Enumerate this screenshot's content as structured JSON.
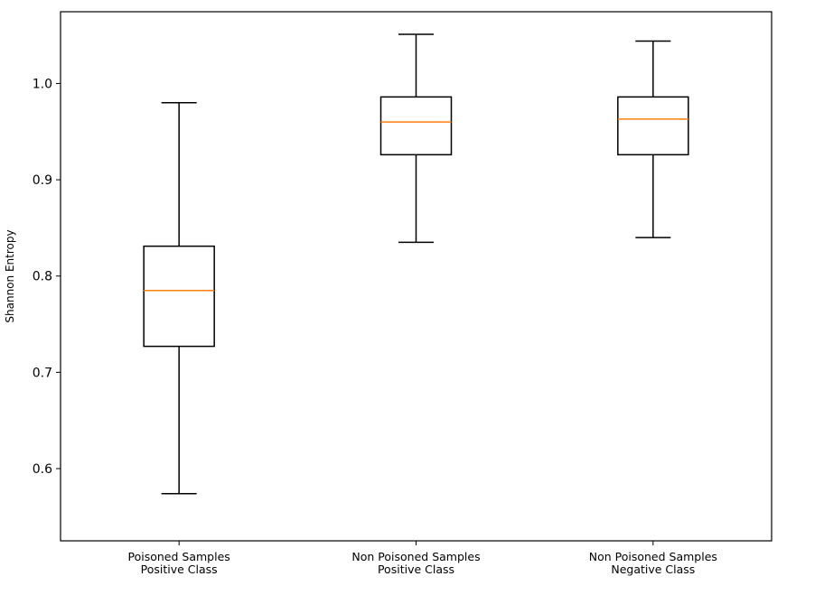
{
  "chart_data": {
    "type": "boxplot",
    "title": "",
    "xlabel": "",
    "ylabel": "Shannon Entropy",
    "ylim": [
      0.525,
      1.0745
    ],
    "yticks": [
      0.6,
      0.7,
      0.8,
      0.9,
      1.0
    ],
    "ytick_labels": [
      "0.6",
      "0.7",
      "0.8",
      "0.9",
      "1.0"
    ],
    "grid": false,
    "colors": {
      "box": "#000000",
      "median": "#ff7f0e"
    },
    "categories": [
      [
        "Poisoned Samples",
        "Positive Class"
      ],
      [
        "Non Poisoned Samples",
        "Positive Class"
      ],
      [
        "Non Poisoned Samples",
        "Negative Class"
      ]
    ],
    "boxes": [
      {
        "whisker_low": 0.574,
        "q1": 0.727,
        "median": 0.785,
        "q3": 0.831,
        "whisker_high": 0.98
      },
      {
        "whisker_low": 0.835,
        "q1": 0.926,
        "median": 0.96,
        "q3": 0.986,
        "whisker_high": 1.051
      },
      {
        "whisker_low": 0.84,
        "q1": 0.926,
        "median": 0.963,
        "q3": 0.986,
        "whisker_high": 1.044
      }
    ]
  }
}
